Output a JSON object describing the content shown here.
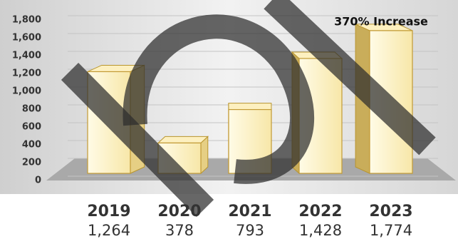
{
  "chart_data": {
    "type": "bar3d",
    "annotation": "370% Increase",
    "categories": [
      "2019",
      "2020",
      "2021",
      "2022",
      "2023"
    ],
    "values": [
      1264,
      378,
      793,
      1428,
      1774
    ],
    "value_labels": [
      "1,264",
      "378",
      "793",
      "1,428",
      "1,774"
    ],
    "color": "#fff6d0",
    "ylim": [
      0,
      1800
    ],
    "yticks": [
      0,
      200,
      400,
      600,
      800,
      {
        "value": 1000,
        "label": "1,000"
      },
      {
        "value": 1200,
        "label": "1,200"
      },
      {
        "value": 1400,
        "label": "1,400"
      },
      {
        "value": 1600,
        "label": "1,600"
      },
      {
        "value": 1800,
        "label": "1,800"
      }
    ],
    "grid": true
  }
}
